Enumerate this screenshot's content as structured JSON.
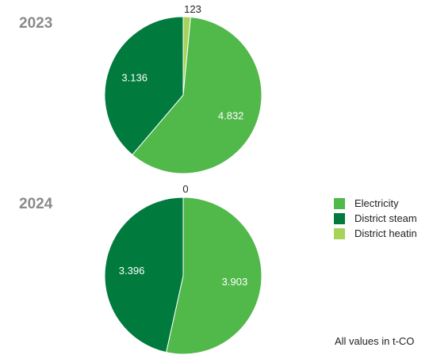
{
  "chart_data": [
    {
      "type": "pie",
      "title": "2023",
      "categories": [
        "Electricity",
        "District steam",
        "District heating"
      ],
      "values": [
        4.832,
        3.136,
        0.123
      ],
      "labels": [
        "4.832",
        "3.136",
        "123"
      ],
      "colors": [
        "#51b84a",
        "#007a3d",
        "#a6d35a"
      ]
    },
    {
      "type": "pie",
      "title": "2024",
      "categories": [
        "Electricity",
        "District steam",
        "District heating"
      ],
      "values": [
        3.903,
        3.396,
        0
      ],
      "labels": [
        "3.903",
        "3.396",
        "0"
      ],
      "colors": [
        "#51b84a",
        "#007a3d",
        "#a6d35a"
      ]
    }
  ],
  "legend": {
    "items": [
      {
        "label": "Electricity",
        "color": "#51b84a"
      },
      {
        "label": "District steam",
        "color": "#007a3d"
      },
      {
        "label": "District heatin",
        "color": "#a6d35a"
      }
    ]
  },
  "footnote": "All values in t-CO"
}
